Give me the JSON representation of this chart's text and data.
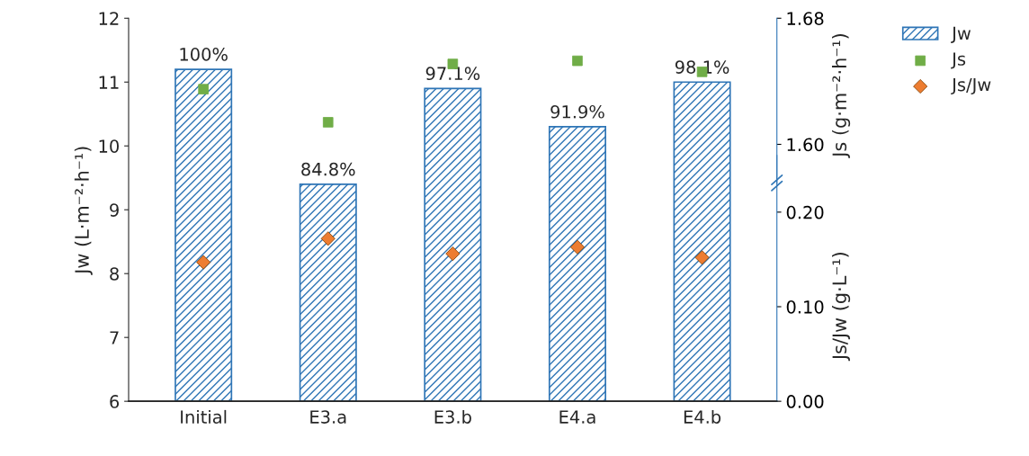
{
  "chart_data": {
    "type": "bar",
    "categories": [
      "Initial",
      "E3.a",
      "E3.b",
      "E4.a",
      "E4.b"
    ],
    "ylabel": "Jw (L·m⁻²·h⁻¹)",
    "y2label": "Js/Jw (g·L⁻¹)",
    "y3label": "Js (g·m⁻²·h⁻¹)",
    "ylim": [
      6,
      12
    ],
    "yticks": [
      6,
      7,
      8,
      9,
      10,
      11,
      12
    ],
    "y2lim": [
      0,
      0.405
    ],
    "y2ticks": [
      {
        "value": 0,
        "label": "0.00"
      },
      {
        "value": 0.1,
        "label": "0.10"
      },
      {
        "value": 0.2,
        "label": "0.20"
      }
    ],
    "y3lim": [
      1.437,
      1.68
    ],
    "y3ticks": [
      {
        "value": 1.6,
        "label": "1.60"
      },
      {
        "value": 1.68,
        "label": "1.68"
      }
    ],
    "series": [
      {
        "name": "Jw",
        "type": "bar",
        "color": "#2e75b6",
        "values": [
          11.2,
          9.4,
          10.9,
          10.3,
          11.0
        ]
      },
      {
        "name": "Js",
        "type": "scatter",
        "axis": "y3",
        "marker": "square",
        "color": "#70ad47",
        "values": [
          1.635,
          1.614,
          1.651,
          1.653,
          1.646
        ]
      },
      {
        "name": "Js/Jw",
        "type": "scatter",
        "axis": "y2",
        "marker": "diamond",
        "color": "#ed7d31",
        "values": [
          0.147,
          0.172,
          0.156,
          0.163,
          0.152
        ]
      }
    ],
    "annotations": [
      {
        "text": "100%",
        "x": "Initial",
        "y": 11.2
      },
      {
        "text": "84.8%",
        "x": "E3.a",
        "y": 9.4
      },
      {
        "text": "97.1%",
        "x": "E3.b",
        "y": 10.9
      },
      {
        "text": "91.9%",
        "x": "E4.a",
        "y": 10.3
      },
      {
        "text": "98.1%",
        "x": "E4.b",
        "y": 11.0
      }
    ],
    "legend": "top right",
    "grid": false
  }
}
